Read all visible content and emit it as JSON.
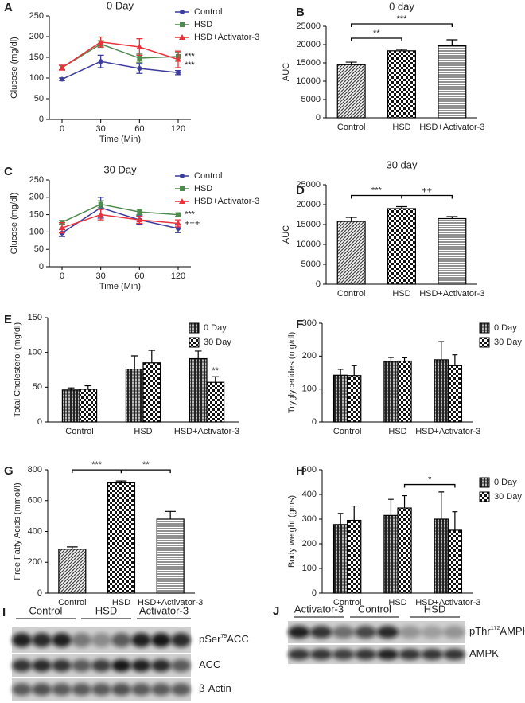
{
  "chart_data": [
    {
      "panel": "A",
      "type": "line",
      "title": "0 Day",
      "x_label": "Time (Min)",
      "y_label": "Glucose (mg/dl)",
      "categories": [
        "0",
        "30",
        "60",
        "120"
      ],
      "ylim": [
        0,
        250
      ],
      "yticks": [
        0,
        50,
        100,
        150,
        200,
        250
      ],
      "legend": "upper right",
      "series": [
        {
          "name": "Control",
          "color": "#3c3c9c",
          "marker": "circle",
          "values": [
            97,
            140,
            123,
            113
          ],
          "errors": [
            3,
            15,
            12,
            5
          ]
        },
        {
          "name": "HSD",
          "color": "#4f8a4f",
          "marker": "square",
          "values": [
            125,
            182,
            148,
            152
          ],
          "errors": [
            5,
            8,
            10,
            10
          ]
        },
        {
          "name": "HSD+Activator-3",
          "color": "#e8323c",
          "marker": "triangle",
          "values": [
            125,
            187,
            175,
            145
          ],
          "errors": [
            6,
            12,
            20,
            20
          ]
        }
      ],
      "annotations": [
        {
          "text": "***",
          "series": 1
        },
        {
          "text": "***",
          "series": 2
        }
      ]
    },
    {
      "panel": "B",
      "type": "bar",
      "title": "0 day",
      "y_label": "AUC",
      "categories": [
        "Control",
        "HSD",
        "HSD+Activator-3"
      ],
      "values": [
        14500,
        18300,
        19700
      ],
      "errors": [
        700,
        400,
        1600
      ],
      "patterns": [
        "diagonal",
        "checker",
        "horizontal"
      ],
      "color": "#000000",
      "ylim": [
        0,
        25000
      ],
      "yticks": [
        0,
        5000,
        10000,
        15000,
        20000,
        25000
      ],
      "annotations": [
        {
          "text": "**",
          "from": 0,
          "to": 1
        },
        {
          "text": "***",
          "from": 0,
          "to": 2
        }
      ]
    },
    {
      "panel": "C",
      "type": "line",
      "title": "30 Day",
      "x_label": "Time (Min)",
      "y_label": "Glucose (mg/dl)",
      "categories": [
        "0",
        "30",
        "60",
        "120"
      ],
      "ylim": [
        0,
        250
      ],
      "yticks": [
        0,
        50,
        100,
        150,
        200,
        250
      ],
      "legend": "upper right",
      "series": [
        {
          "name": "Control",
          "color": "#3c3c9c",
          "marker": "circle",
          "values": [
            97,
            170,
            135,
            110
          ],
          "errors": [
            10,
            30,
            12,
            12
          ]
        },
        {
          "name": "HSD",
          "color": "#4f8a4f",
          "marker": "square",
          "values": [
            128,
            180,
            158,
            150
          ],
          "errors": [
            5,
            10,
            8,
            5
          ]
        },
        {
          "name": "HSD+Activator-3",
          "color": "#e8323c",
          "marker": "triangle",
          "values": [
            112,
            150,
            135,
            125
          ],
          "errors": [
            15,
            15,
            10,
            10
          ]
        }
      ],
      "annotations": [
        {
          "text": "***",
          "series": 1
        },
        {
          "text": "+++",
          "series": 2
        }
      ]
    },
    {
      "panel": "D",
      "type": "bar",
      "title": "30 day",
      "y_label": "AUC",
      "categories": [
        "Control",
        "HSD",
        "HSD+Activator-3"
      ],
      "values": [
        15800,
        19000,
        16500
      ],
      "errors": [
        1000,
        500,
        500
      ],
      "patterns": [
        "diagonal",
        "checker",
        "horizontal"
      ],
      "color": "#000000",
      "ylim": [
        0,
        25000
      ],
      "yticks": [
        0,
        5000,
        10000,
        15000,
        20000,
        25000
      ],
      "annotations": [
        {
          "text": "***",
          "from": 0,
          "to": 1
        },
        {
          "text": "++",
          "from": 1,
          "to": 2
        }
      ]
    },
    {
      "panel": "E",
      "type": "grouped_bar",
      "y_label": "Total Cholesterol (mg/dl)",
      "categories": [
        "Control",
        "HSD",
        "HSD+Activator-3"
      ],
      "ylim": [
        0,
        150
      ],
      "yticks": [
        0,
        50,
        100,
        150
      ],
      "color": "#000000",
      "legend": "upper right",
      "series": [
        {
          "name": "0 Day",
          "pattern": "vertical",
          "values": [
            46,
            76,
            91
          ],
          "errors": [
            3,
            19,
            11
          ]
        },
        {
          "name": "30 Day",
          "pattern": "checker",
          "values": [
            47,
            85,
            57
          ],
          "errors": [
            5,
            18,
            8
          ]
        }
      ],
      "annotations": [
        {
          "text": "**",
          "series": 1,
          "category": 2
        }
      ]
    },
    {
      "panel": "F",
      "type": "grouped_bar",
      "y_label": "Tryglycerides (mg/dl)",
      "categories": [
        "Control",
        "HSD",
        "HSD+Activator-3"
      ],
      "ylim": [
        0,
        300
      ],
      "yticks": [
        0,
        100,
        200,
        300
      ],
      "color": "#000000",
      "legend": "outside upper right",
      "series": [
        {
          "name": "0 Day",
          "pattern": "vertical",
          "values": [
            142,
            184,
            189
          ],
          "errors": [
            18,
            12,
            55
          ]
        },
        {
          "name": "30 Day",
          "pattern": "checker",
          "values": [
            141,
            185,
            171
          ],
          "errors": [
            30,
            10,
            33
          ]
        }
      ]
    },
    {
      "panel": "G",
      "type": "bar",
      "y_label": "Free Fatty Acids (mmol/l)",
      "categories": [
        "Control",
        "HSD",
        "HSD+Activator-3"
      ],
      "values": [
        285,
        715,
        480
      ],
      "errors": [
        15,
        12,
        50
      ],
      "patterns": [
        "diagonal",
        "checker",
        "horizontal"
      ],
      "color": "#000000",
      "ylim": [
        0,
        800
      ],
      "yticks": [
        0,
        200,
        400,
        600,
        800
      ],
      "annotations": [
        {
          "text": "***",
          "from": 0,
          "to": 1
        },
        {
          "text": "**",
          "from": 1,
          "to": 2
        }
      ]
    },
    {
      "panel": "H",
      "type": "grouped_bar",
      "y_label": "Body weight (gms)",
      "categories": [
        "Control",
        "HSD",
        "HSD+Activator-3"
      ],
      "ylim": [
        0,
        500
      ],
      "yticks": [
        0,
        100,
        200,
        300,
        400,
        500
      ],
      "color": "#000000",
      "legend": "outside upper right",
      "series": [
        {
          "name": "0 Day",
          "pattern": "vertical",
          "values": [
            278,
            315,
            300
          ],
          "errors": [
            45,
            65,
            110
          ]
        },
        {
          "name": "30 Day",
          "pattern": "checker",
          "values": [
            295,
            345,
            255
          ],
          "errors": [
            58,
            50,
            75
          ]
        }
      ],
      "annotations": [
        {
          "text": "*",
          "series": 1,
          "from": 1,
          "to": 2
        }
      ]
    }
  ],
  "blots": [
    {
      "panel": "I",
      "lanes": [
        "Control",
        "HSD",
        "Activator-3"
      ],
      "rows": [
        [
          "pSer",
          "79",
          "ACC"
        ],
        [
          "ACC"
        ],
        [
          "β-Actin"
        ]
      ]
    },
    {
      "panel": "J",
      "lanes": [
        "Activator-3",
        "Control",
        "HSD"
      ],
      "rows": [
        [
          "pThr",
          "172",
          "AMPK"
        ],
        [
          "AMPK"
        ]
      ]
    }
  ]
}
